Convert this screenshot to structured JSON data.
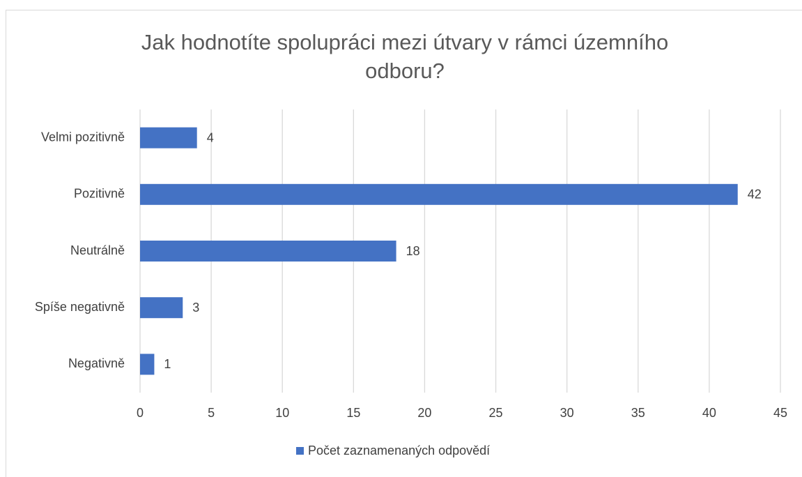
{
  "chart_data": {
    "type": "barh",
    "title": "Jak hodnotíte spolupráci mezi útvary v rámci územního odboru?",
    "categories": [
      "Velmi pozitivně",
      "Pozitivně",
      "Neutrálně",
      "Spíše negativně",
      "Negativně"
    ],
    "series": [
      {
        "name": "Počet zaznamenaných odpovědí",
        "color": "#4472c4",
        "values": [
          4,
          42,
          18,
          3,
          1
        ]
      }
    ],
    "xlim": [
      0,
      45
    ],
    "xticks": [
      0,
      5,
      10,
      15,
      20,
      25,
      30,
      35,
      40,
      45
    ],
    "grid": true,
    "legend": "bottom"
  }
}
